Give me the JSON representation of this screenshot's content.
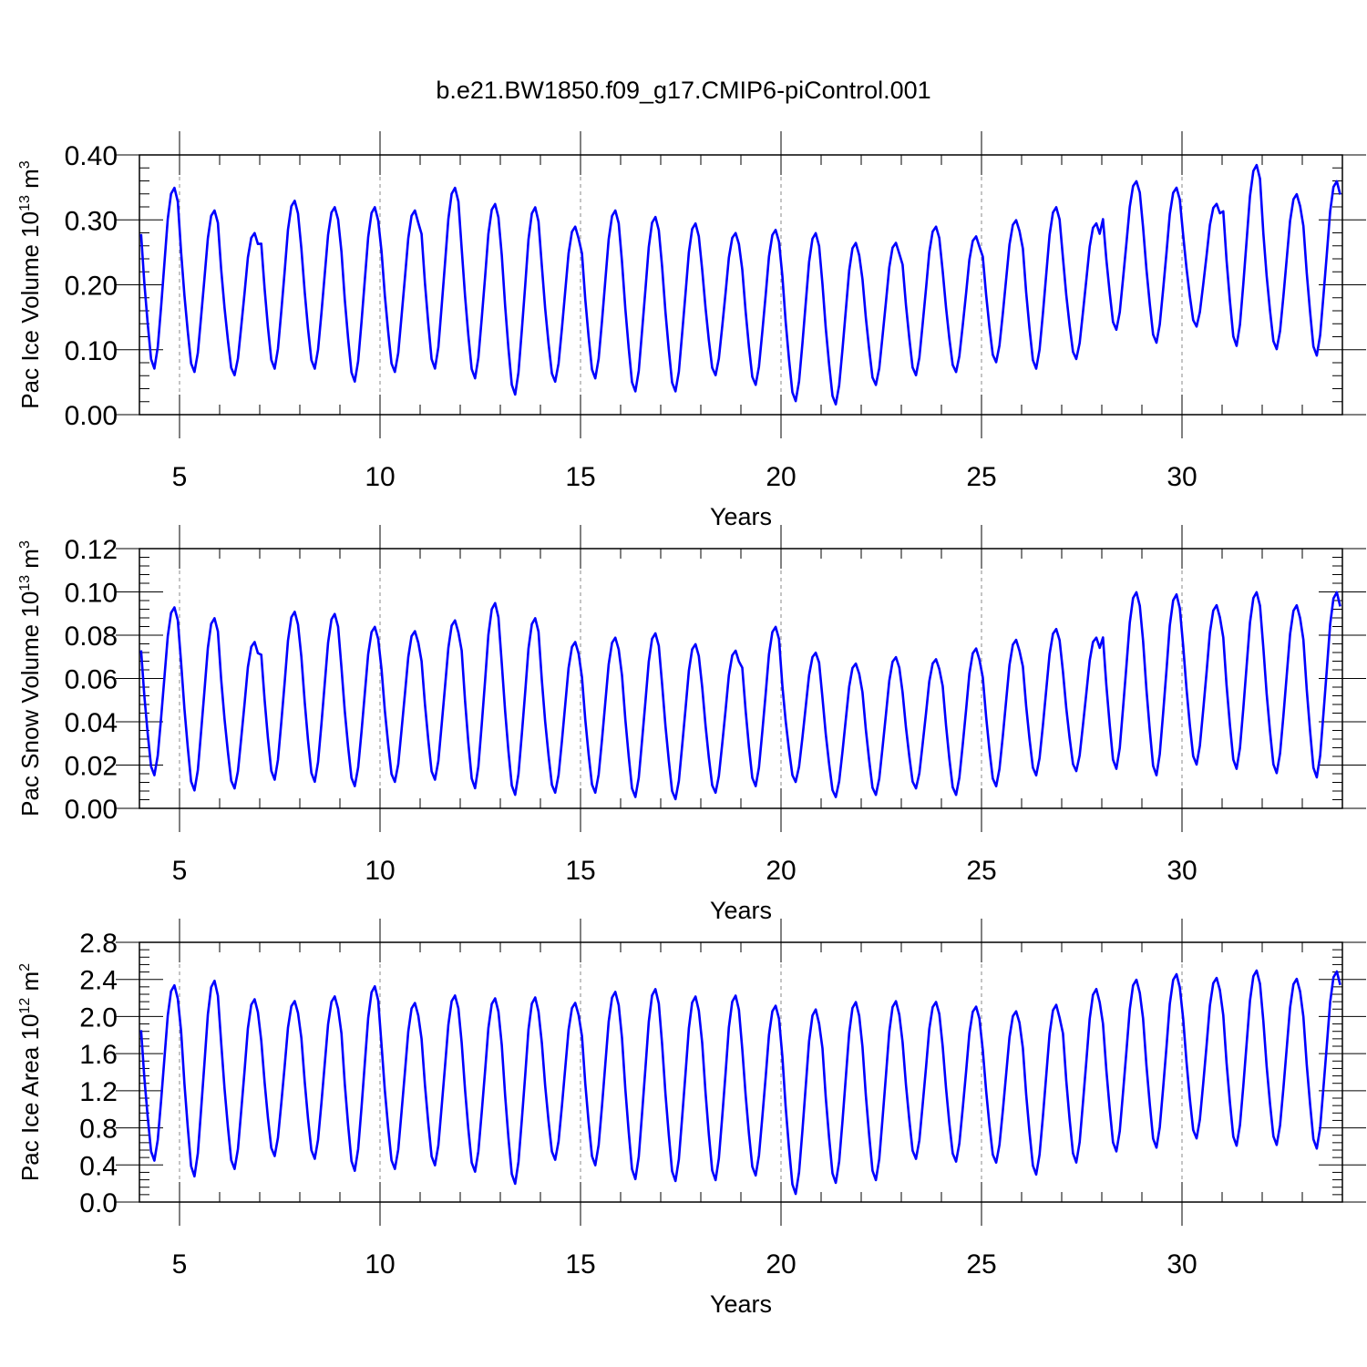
{
  "figure": {
    "title": "b.e21.BW1850.f09_g17.CMIP6-piControl.001",
    "line_color": "#0000ff"
  },
  "chart_data": [
    {
      "type": "line",
      "title": "",
      "xlabel": "Years",
      "ylabel_main": "Pac Ice Volume 10",
      "ylabel_exp": "13",
      "ylabel_unit": " m",
      "ylabel_unit_exp": "3",
      "xlim": [
        4,
        34
      ],
      "ylim": [
        0,
        0.4
      ],
      "x_ticks": [
        5,
        10,
        15,
        20,
        25,
        30
      ],
      "y_ticks": [
        0.0,
        0.1,
        0.2,
        0.3,
        0.4
      ],
      "y_tick_labels": [
        "0.00",
        "0.10",
        "0.20",
        "0.30",
        "0.40"
      ],
      "grid": "vertical dashed lines at major x ticks",
      "series": [
        {
          "start_year": 4.04,
          "step": 0.0833,
          "amplitude": [
            0.14,
            0.125,
            0.11,
            0.13,
            0.125,
            0.135,
            0.125,
            0.14,
            0.135,
            0.145,
            0.12,
            0.13,
            0.135,
            0.13,
            0.11,
            0.12,
            0.13,
            0.125,
            0.11,
            0.115,
            0.105,
            0.11,
            0.125,
            0.105,
            0.115,
            0.12,
            0.095,
            0.14,
            0.12,
            0.135
          ],
          "mean": [
            0.21,
            0.19,
            0.17,
            0.2,
            0.195,
            0.185,
            0.19,
            0.21,
            0.19,
            0.175,
            0.17,
            0.185,
            0.17,
            0.165,
            0.17,
            0.165,
            0.15,
            0.14,
            0.155,
            0.175,
            0.17,
            0.19,
            0.195,
            0.19,
            0.245,
            0.23,
            0.23,
            0.245,
            0.22,
            0.225
          ]
        }
      ]
    },
    {
      "type": "line",
      "title": "",
      "xlabel": "Years",
      "ylabel_main": "Pac Snow Volume 10",
      "ylabel_exp": "13",
      "ylabel_unit": " m",
      "ylabel_unit_exp": "3",
      "xlim": [
        4,
        34
      ],
      "ylim": [
        0,
        0.12
      ],
      "x_ticks": [
        5,
        10,
        15,
        20,
        25,
        30
      ],
      "y_ticks": [
        0.0,
        0.02,
        0.04,
        0.06,
        0.08,
        0.1,
        0.12
      ],
      "y_tick_labels": [
        "0.00",
        "0.02",
        "0.04",
        "0.06",
        "0.08",
        "0.10",
        "0.12"
      ],
      "grid": "vertical dashed lines at major x ticks",
      "series": [
        {
          "start_year": 4.04,
          "step": 0.0833,
          "amplitude": [
            0.039,
            0.04,
            0.034,
            0.039,
            0.039,
            0.037,
            0.035,
            0.037,
            0.043,
            0.041,
            0.035,
            0.036,
            0.038,
            0.036,
            0.033,
            0.037,
            0.03,
            0.031,
            0.032,
            0.03,
            0.034,
            0.034,
            0.034,
            0.031,
            0.041,
            0.042,
            0.037,
            0.041,
            0.039,
            0.043
          ],
          "mean": [
            0.054,
            0.048,
            0.043,
            0.052,
            0.051,
            0.047,
            0.047,
            0.05,
            0.052,
            0.047,
            0.042,
            0.043,
            0.043,
            0.04,
            0.04,
            0.047,
            0.042,
            0.036,
            0.038,
            0.039,
            0.04,
            0.044,
            0.049,
            0.048,
            0.059,
            0.057,
            0.057,
            0.059,
            0.055,
            0.057
          ]
        }
      ]
    },
    {
      "type": "line",
      "title": "",
      "xlabel": "Years",
      "ylabel_main": "Pac Ice Area 10",
      "ylabel_exp": "12",
      "ylabel_unit": " m",
      "ylabel_unit_exp": "2",
      "xlim": [
        4,
        34
      ],
      "ylim": [
        0,
        2.8
      ],
      "x_ticks": [
        5,
        10,
        15,
        20,
        25,
        30
      ],
      "y_ticks": [
        0.0,
        0.4,
        0.8,
        1.2,
        1.6,
        2.0,
        2.4,
        2.8
      ],
      "y_tick_labels": [
        "0.0",
        "0.4",
        "0.8",
        "1.2",
        "1.6",
        "2.0",
        "2.4",
        "2.8"
      ],
      "grid": "vertical dashed lines at major x ticks",
      "series": [
        {
          "start_year": 4.04,
          "step": 0.0833,
          "amplitude": [
            0.95,
            1.06,
            0.92,
            0.84,
            0.88,
            1.0,
            0.9,
            0.92,
            0.94,
            1.01,
            0.85,
            0.94,
            1.03,
            1.0,
            1.0,
            0.92,
            1.0,
            0.98,
            0.97,
            0.85,
            0.84,
            0.82,
            0.92,
            0.94,
            0.93,
            0.94,
            0.87,
            0.95,
            0.9,
            0.96
          ],
          "mean": [
            1.39,
            1.33,
            1.27,
            1.33,
            1.34,
            1.33,
            1.25,
            1.31,
            1.26,
            1.2,
            1.3,
            1.33,
            1.27,
            1.22,
            1.23,
            1.2,
            1.08,
            1.18,
            1.2,
            1.31,
            1.27,
            1.24,
            1.21,
            1.36,
            1.47,
            1.52,
            1.55,
            1.55,
            1.51,
            1.53
          ]
        }
      ]
    }
  ]
}
